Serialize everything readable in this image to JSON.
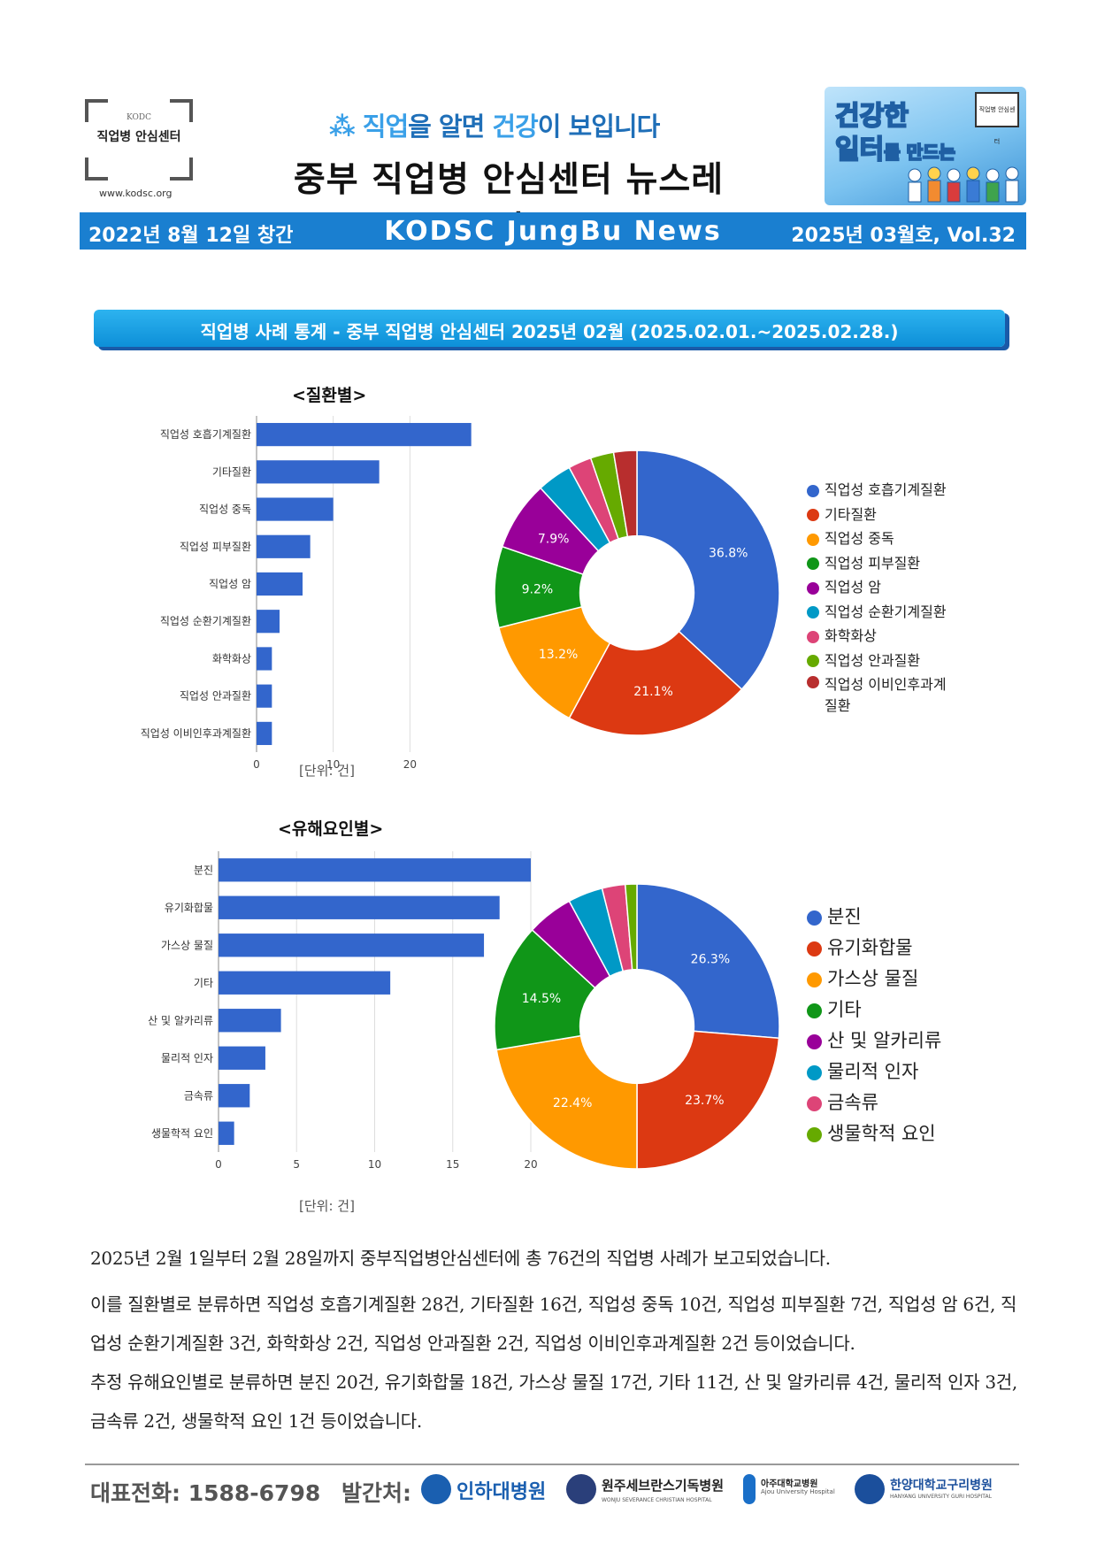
{
  "header": {
    "logo_kodc": "KODC",
    "logo_name": "직업병 안심센터",
    "logo_url": "www.kodsc.org",
    "slogan_pre": "직업",
    "slogan_mid1": "을 알면 ",
    "slogan_hl": "건강",
    "slogan_post": "이 보입니다",
    "title": "중부 직업병 안심센터 뉴스레터",
    "badge_line1": "건강한",
    "badge_line2": "일터",
    "badge_line2_suffix": "를 만드는",
    "badge_mini": "직업병 안심센터"
  },
  "banner": {
    "left": "2022년 8월 12일 창간",
    "center": "KODSC JungBu News",
    "right": "2025년 03월호, Vol.32"
  },
  "section": {
    "title": "직업병 사례 통계 - 중부 직업병 안심센터   2025년 02월 (2025.02.01.~2025.02.28.)"
  },
  "chart_data": [
    {
      "type": "bar",
      "orientation": "horizontal",
      "title": "<질환별>",
      "categories": [
        "직업성 호흡기계질환",
        "기타질환",
        "직업성 중독",
        "직업성 피부질환",
        "직업성 암",
        "직업성 순환기계질환",
        "화학화상",
        "직업성 안과질환",
        "직업성 이비인후과계질환"
      ],
      "values": [
        28,
        16,
        10,
        7,
        6,
        3,
        2,
        2,
        2
      ],
      "xlim": [
        0,
        30
      ],
      "xticks": [
        0,
        10,
        20
      ],
      "xlabel": "[단위: 건]",
      "grid": true
    },
    {
      "type": "pie",
      "donut": true,
      "labels": [
        "직업성 호흡기계질환",
        "기타질환",
        "직업성 중독",
        "직업성 피부질환",
        "직업성 암",
        "직업성 순환기계질환",
        "화학화상",
        "직업성 안과질환",
        "직업성 이비인후과계 질환"
      ],
      "values": [
        28,
        16,
        10,
        7,
        6,
        3,
        2,
        2,
        2
      ],
      "slice_labels": [
        "36.8%",
        "21.1%",
        "13.2%",
        "9.2%",
        "7.9%",
        "",
        "",
        "",
        ""
      ],
      "legend": "right"
    },
    {
      "type": "bar",
      "orientation": "horizontal",
      "title": "<유해요인별>",
      "categories": [
        "분진",
        "유기화합물",
        "가스상 물질",
        "기타",
        "산 및 알카리류",
        "물리적 인자",
        "금속류",
        "생물학적 요인"
      ],
      "values": [
        20,
        18,
        17,
        11,
        4,
        3,
        2,
        1
      ],
      "xlim": [
        0,
        20
      ],
      "xticks": [
        0,
        5,
        10,
        15,
        20
      ],
      "xlabel": "[단위: 건]",
      "grid": true
    },
    {
      "type": "pie",
      "donut": true,
      "labels": [
        "분진",
        "유기화합물",
        "가스상 물질",
        "기타",
        "산 및 알카리류",
        "물리적 인자",
        "금속류",
        "생물학적 요인"
      ],
      "values": [
        20,
        18,
        17,
        11,
        4,
        3,
        2,
        1
      ],
      "slice_labels": [
        "26.3%",
        "23.7%",
        "22.4%",
        "14.5%",
        "",
        "",
        "",
        ""
      ],
      "legend": "right"
    }
  ],
  "colors": [
    "#3366cc",
    "#dc3912",
    "#ff9900",
    "#109618",
    "#990099",
    "#0099c6",
    "#dd4477",
    "#66aa00",
    "#b82e2e"
  ],
  "body": {
    "p1": "2025년 2월 1일부터 2월 28일까지 중부직업병안심센터에 총 76건의 직업병 사례가 보고되었습니다.",
    "p2": "이를 질환별로 분류하면 직업성 호흡기계질환 28건, 기타질환 16건, 직업성 중독 10건, 직업성 피부질환 7건, 직업성 암 6건, 직업성 순환기계질환 3건, 화학화상 2건, 직업성 안과질환 2건, 직업성 이비인후과계질환 2건 등이었습니다.",
    "p3": "추정 유해요인별로 분류하면 분진 20건, 유기화합물 18건, 가스상 물질 17건, 기타 11건, 산 및 알카리류 4건, 물리적 인자 3건, 금속류 2건, 생물학적 요인 1건 등이었습니다."
  },
  "footer": {
    "phone": "대표전화: 1588-6798",
    "publisher_label": "발간처:",
    "hospitals": [
      "인하대병원",
      "원주세브란스기독병원",
      "아주대학교병원",
      "한양대학교구리병원"
    ],
    "hospital_subs": [
      "",
      "WONJU SEVERANCE CHRISTIAN HOSPITAL",
      "Ajou University Hospital",
      "HANYANG UNIVERSITY GURI HOSPITAL"
    ]
  }
}
